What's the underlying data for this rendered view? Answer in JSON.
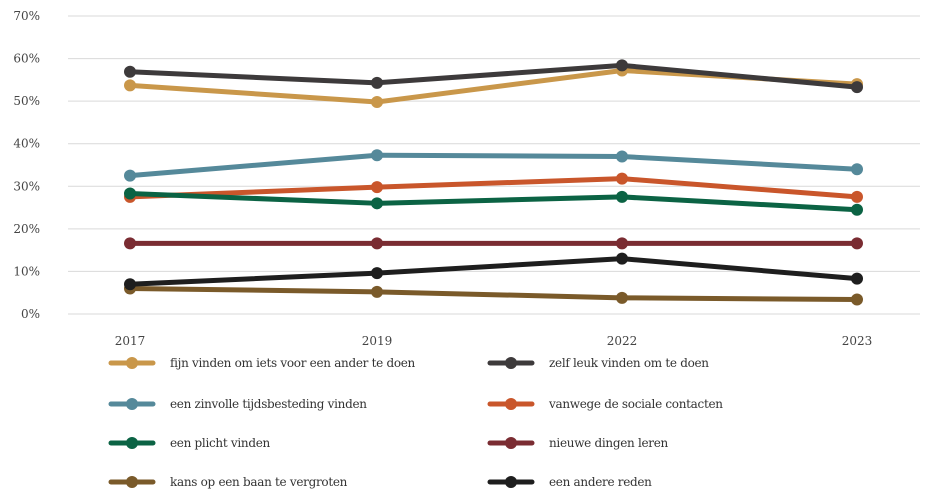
{
  "chart_data": {
    "type": "line",
    "title": "",
    "xlabel": "",
    "ylabel": "",
    "categories": [
      "2017",
      "2019",
      "2022",
      "2023"
    ],
    "ylim": [
      0,
      70
    ],
    "yticks": [
      "0%",
      "10%",
      "20%",
      "30%",
      "40%",
      "50%",
      "60%",
      "70%"
    ],
    "grid": true,
    "legend_position": "bottom",
    "series": [
      {
        "name": "fijn vinden om iets voor een ander te doen",
        "color": "#C9974A",
        "values": [
          53.7,
          49.8,
          57.2,
          54.0
        ]
      },
      {
        "name": "zelf leuk vinden om te doen",
        "color": "#3D3A3B",
        "values": [
          56.9,
          54.3,
          58.4,
          53.3
        ]
      },
      {
        "name": "een zinvolle tijdsbesteding vinden",
        "color": "#55899A",
        "values": [
          32.5,
          37.3,
          37.0,
          34.0
        ]
      },
      {
        "name": "vanwege de sociale contacten",
        "color": "#C9562B",
        "values": [
          27.5,
          29.8,
          31.8,
          27.5
        ]
      },
      {
        "name": "een plicht vinden",
        "color": "#0B6344",
        "values": [
          28.3,
          26.0,
          27.5,
          24.5
        ]
      },
      {
        "name": "nieuwe dingen leren",
        "color": "#7A2C32",
        "values": [
          16.6,
          16.6,
          16.6,
          16.6
        ]
      },
      {
        "name": "kans op een baan te vergroten",
        "color": "#7A5A2A",
        "values": [
          6.0,
          5.2,
          3.8,
          3.4
        ]
      },
      {
        "name": "een andere reden",
        "color": "#1E1E1E",
        "values": [
          7.0,
          9.6,
          13.0,
          8.3
        ]
      }
    ]
  }
}
